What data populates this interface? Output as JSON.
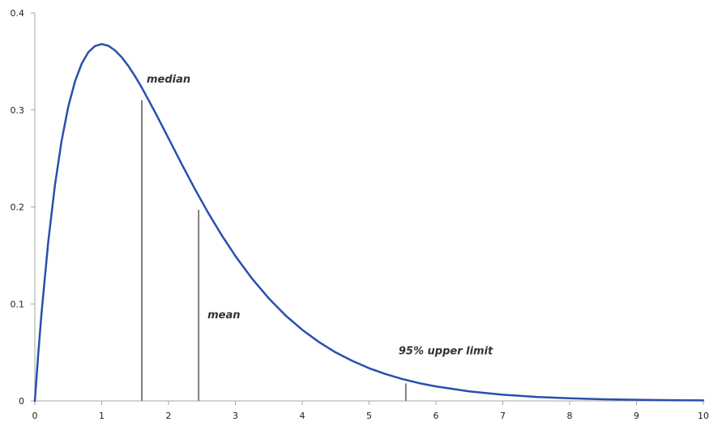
{
  "chart_data": {
    "type": "line",
    "title": "",
    "xlabel": "",
    "ylabel": "",
    "xlim": [
      0,
      10
    ],
    "ylim": [
      0,
      0.4
    ],
    "x_ticks": [
      "0",
      "1",
      "2",
      "3",
      "4",
      "5",
      "6",
      "7",
      "8",
      "9",
      "10"
    ],
    "y_ticks": [
      "0",
      "0.1",
      "0.2",
      "0.3",
      "0.4"
    ],
    "grid": false,
    "legend": "none",
    "series": [
      {
        "color": "#2a4fb0",
        "x": [
          0,
          0.05,
          0.1,
          0.2,
          0.3,
          0.4,
          0.5,
          0.6,
          0.7,
          0.8,
          0.9,
          1.0,
          1.1,
          1.2,
          1.3,
          1.4,
          1.5,
          1.6,
          1.8,
          2.0,
          2.2,
          2.4,
          2.6,
          2.8,
          3.0,
          3.25,
          3.5,
          3.75,
          4.0,
          4.25,
          4.5,
          4.75,
          5.0,
          5.25,
          5.5,
          5.75,
          6.0,
          6.5,
          7.0,
          7.5,
          8.0,
          8.5,
          9.0,
          9.5,
          10.0
        ],
        "y": [
          0,
          0.0476,
          0.0905,
          0.1637,
          0.2222,
          0.2681,
          0.3033,
          0.3293,
          0.3476,
          0.3595,
          0.3659,
          0.3679,
          0.3662,
          0.3614,
          0.3543,
          0.3452,
          0.3347,
          0.323,
          0.2975,
          0.2707,
          0.2438,
          0.2177,
          0.1931,
          0.1703,
          0.1494,
          0.126,
          0.1057,
          0.0881,
          0.0733,
          0.0607,
          0.05,
          0.0412,
          0.0337,
          0.0276,
          0.0225,
          0.0183,
          0.0149,
          0.0098,
          0.0064,
          0.0041,
          0.0027,
          0.0017,
          0.0011,
          0.0007,
          0.0005
        ]
      }
    ],
    "markers": [
      {
        "label": "median",
        "x": 1.6,
        "y": 0.31,
        "color": "#7f7f7f"
      },
      {
        "label": "mean",
        "x": 2.45,
        "y": 0.197,
        "color": "#7f7f7f"
      },
      {
        "label": "95% upper limit",
        "x": 5.55,
        "y": 0.018,
        "color": "#7f7f7f"
      }
    ],
    "axis_color": "#a6a6a6"
  }
}
